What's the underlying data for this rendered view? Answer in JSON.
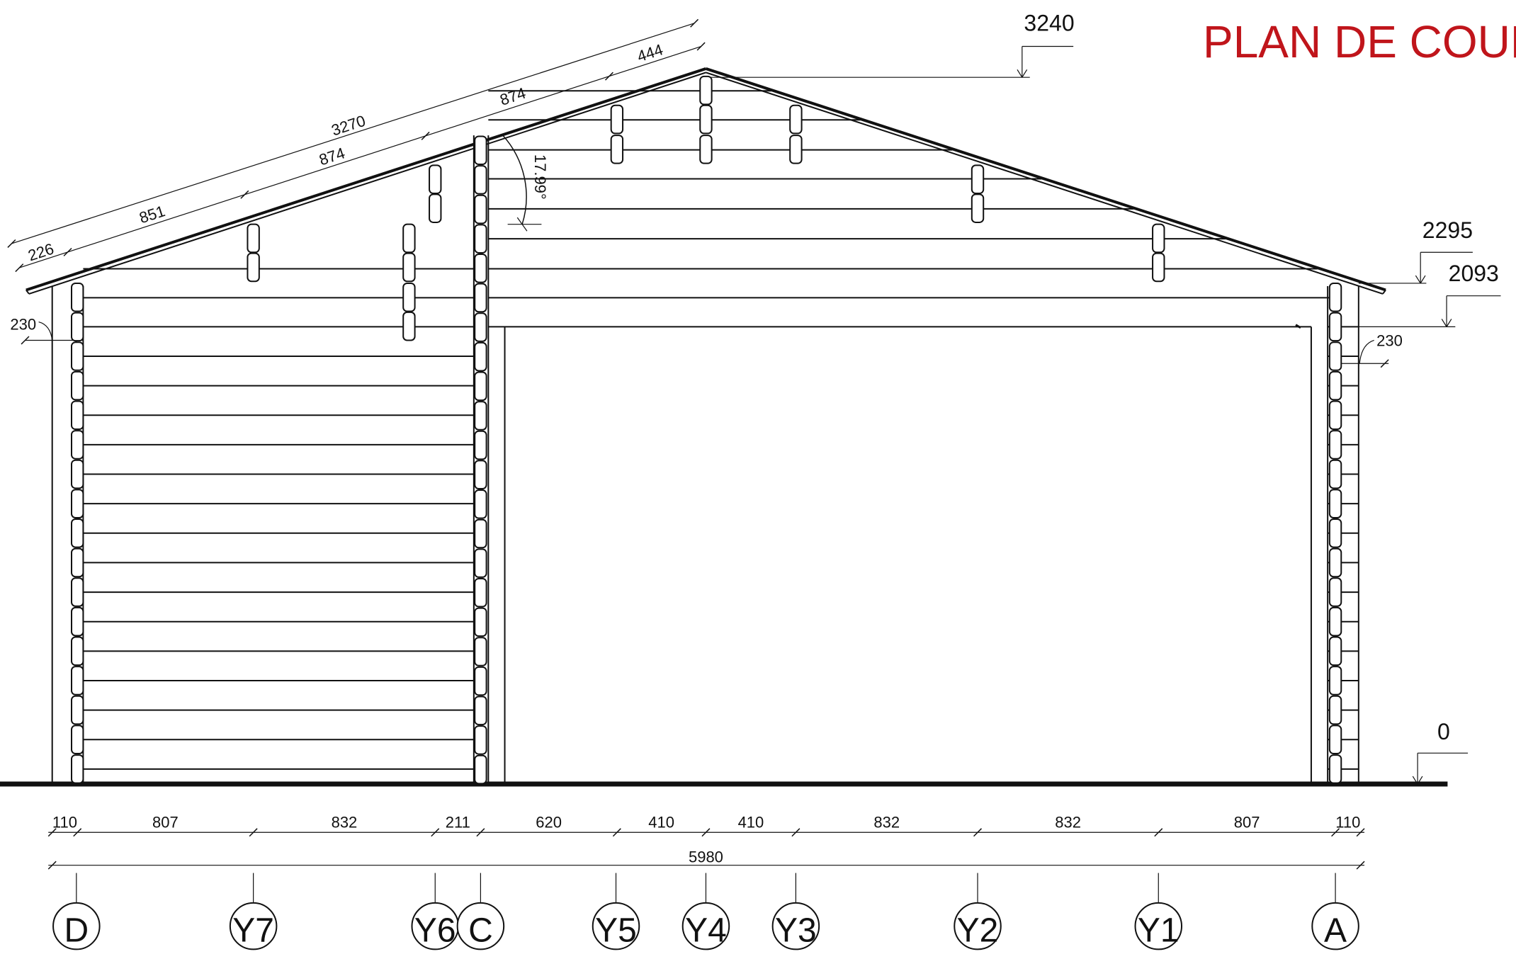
{
  "title": "PLAN DE COUPE",
  "colors": {
    "title": "#c0151b",
    "line": "#111111"
  },
  "elevations": [
    "3240",
    "2295",
    "2093",
    "0"
  ],
  "roof_dimensions": {
    "total": "3270",
    "segments_outer": [
      "874",
      "874",
      "444"
    ],
    "segments_inner": [
      "226",
      "851"
    ]
  },
  "angle": "17.99°",
  "overhang_dims": {
    "left": "230",
    "right": "230"
  },
  "bottom_dimensions": [
    "110",
    "807",
    "832",
    "211",
    "620",
    "410",
    "410",
    "832",
    "832",
    "807",
    "110"
  ],
  "total_width": "5980",
  "axes": [
    "D",
    "Y7",
    "Y6",
    "C",
    "Y5",
    "Y4",
    "Y3",
    "Y2",
    "Y1",
    "A"
  ]
}
